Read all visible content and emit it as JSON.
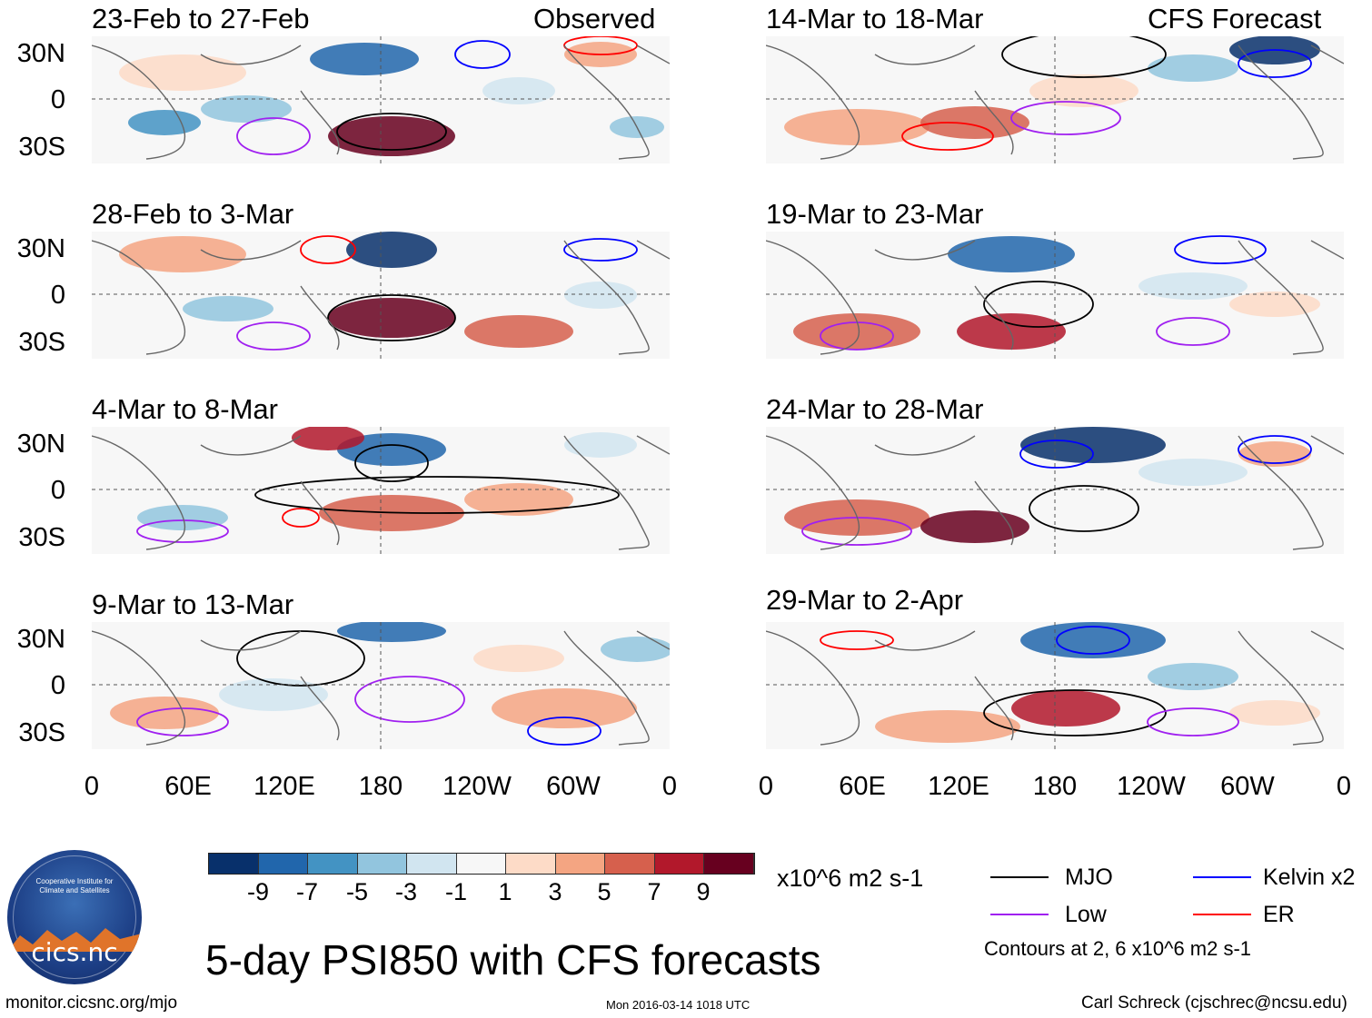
{
  "panels": [
    {
      "title": "23-Feb to 27-Feb",
      "label": "Observed"
    },
    {
      "title": "28-Feb to 3-Mar",
      "label": ""
    },
    {
      "title": "4-Mar to 8-Mar",
      "label": ""
    },
    {
      "title": "9-Mar to 13-Mar",
      "label": ""
    },
    {
      "title": "14-Mar to 18-Mar",
      "label": "CFS Forecast"
    },
    {
      "title": "19-Mar to 23-Mar",
      "label": ""
    },
    {
      "title": "24-Mar to 28-Mar",
      "label": ""
    },
    {
      "title": "29-Mar to 2-Apr",
      "label": ""
    }
  ],
  "lat_labels": [
    "30N",
    "0",
    "30S"
  ],
  "lon_labels": [
    "0",
    "60E",
    "120E",
    "180",
    "120W",
    "60W",
    "0"
  ],
  "colorbar": {
    "colors": [
      "#08306b",
      "#2166ac",
      "#4393c3",
      "#92c5de",
      "#d1e5f0",
      "#f7f7f7",
      "#fddbc7",
      "#f4a582",
      "#d6604d",
      "#b2182b",
      "#67001f"
    ],
    "labels": [
      "-9",
      "-7",
      "-5",
      "-3",
      "-1",
      "1",
      "3",
      "5",
      "7",
      "9"
    ],
    "units": "x10^6 m2 s-1"
  },
  "legend": {
    "mjo": "MJO",
    "kelvin": "Kelvin x2",
    "low": "Low",
    "er": "ER",
    "colors": {
      "mjo": "#000000",
      "kelvin": "#0000ff",
      "low": "#a020f0",
      "er": "#ff0000"
    },
    "contours_note": "Contours at 2, 6 x10^6 m2 s-1"
  },
  "main_title": "5-day PSI850 with CFS forecasts",
  "footer": {
    "url": "monitor.cicsnc.org/mjo",
    "timestamp": "Mon 2016-03-14 1018 UTC",
    "author": "Carl Schreck (cjschrec@ncsu.edu)"
  },
  "logo": {
    "text": "cics.nc",
    "ring_text": "Cooperative Institute for Climate and Satellites"
  }
}
